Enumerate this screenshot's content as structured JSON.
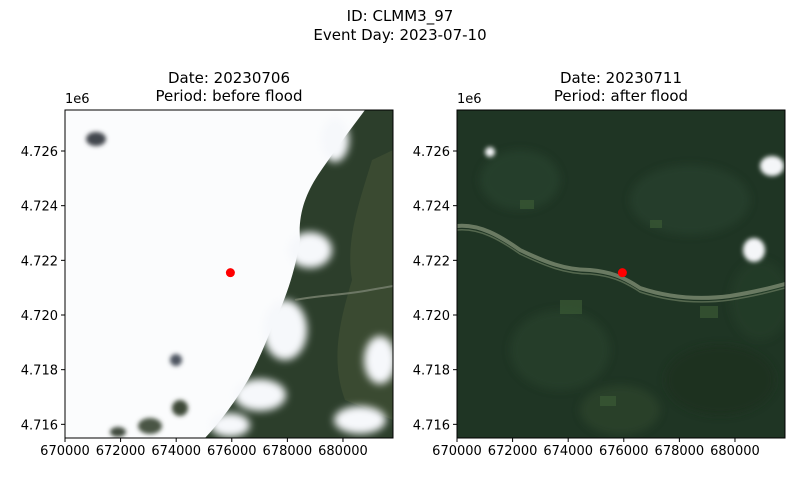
{
  "figure": {
    "title_line1": "ID: CLMM3_97",
    "title_line2": "Event Day: 2023-07-10"
  },
  "panels": [
    {
      "title_line1": "Date: 20230706",
      "title_line2": "Period: before flood",
      "y_offset_label": "1e6",
      "image": "satellite-before-flood-mostly-cloud",
      "marker_color": "#ff0000"
    },
    {
      "title_line1": "Date: 20230711",
      "title_line2": "Period: after flood",
      "y_offset_label": "1e6",
      "image": "satellite-after-flood-forest-river",
      "marker_color": "#ff0000"
    }
  ],
  "axes": {
    "x_range": [
      670000,
      681800
    ],
    "y_range": [
      4715500,
      4727500
    ],
    "x_ticks": [
      "670000",
      "672000",
      "674000",
      "676000",
      "678000",
      "680000"
    ],
    "x_tick_values": [
      670000,
      672000,
      674000,
      676000,
      678000,
      680000
    ],
    "y_ticks": [
      "4.716",
      "4.718",
      "4.720",
      "4.722",
      "4.724",
      "4.726"
    ],
    "y_tick_values": [
      4716000,
      4718000,
      4720000,
      4722000,
      4724000,
      4726000
    ]
  },
  "marker": {
    "x": 675950,
    "y": 4721550
  }
}
